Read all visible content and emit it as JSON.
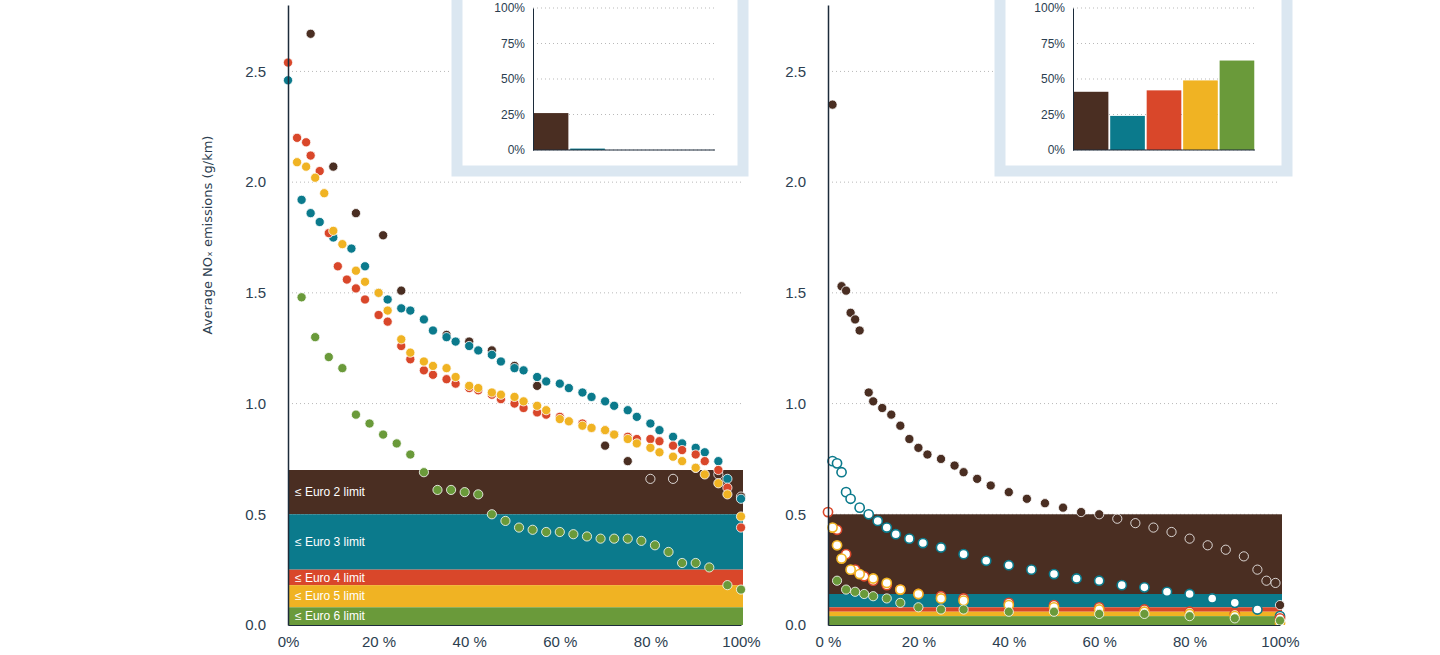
{
  "chart_data": [
    {
      "type": "scatter",
      "ylabel": "Average NOₓ emissions (g/km)",
      "xlim": [
        0,
        100
      ],
      "xticks": [
        {
          "value": 0,
          "label": "0%"
        },
        {
          "value": 20,
          "label": "20 %"
        },
        {
          "value": 40,
          "label": "40 %"
        },
        {
          "value": 60,
          "label": "60 %"
        },
        {
          "value": 80,
          "label": "80 %"
        },
        {
          "value": 100,
          "label": "100%"
        }
      ],
      "ylim": [
        0,
        2.8
      ],
      "yticks": [
        {
          "value": 0,
          "label": "0.0"
        },
        0.5,
        {
          "value": 1,
          "label": "1.0"
        },
        1.5,
        {
          "value": 2,
          "label": "2.0"
        },
        2.5
      ],
      "grid": true,
      "limits": [
        {
          "label": "≤ Euro 2 limit",
          "value": 0.7,
          "color": "#4a2e22"
        },
        {
          "label": "≤ Euro 3 limit",
          "value": 0.5,
          "color": "#0b7a8c"
        },
        {
          "label": "≤ Euro 4 limit",
          "value": 0.25,
          "color": "#d9472a"
        },
        {
          "label": "≤ Euro 5 limit",
          "value": 0.18,
          "color": "#f0b323"
        },
        {
          "label": "≤ Euro 6 limit",
          "value": 0.08,
          "color": "#6a9a3a"
        }
      ],
      "series": [
        {
          "color": "#4a2e22",
          "marker": "circle",
          "x": [
            5,
            10,
            15,
            21,
            25,
            35,
            40,
            45,
            50,
            55,
            70,
            75,
            80,
            85,
            90,
            95,
            100
          ],
          "values": [
            2.67,
            2.07,
            1.86,
            1.76,
            1.51,
            1.31,
            1.28,
            1.24,
            1.17,
            1.08,
            0.81,
            0.74,
            0.66,
            0.66,
            0.71,
            0.68,
            0.58
          ]
        },
        {
          "color": "#0b7a8c",
          "marker": "circle",
          "x": [
            0,
            3,
            5,
            7,
            10,
            14,
            17,
            20,
            22,
            25,
            27,
            30,
            32,
            35,
            37,
            40,
            42,
            45,
            47,
            50,
            52,
            55,
            57,
            60,
            62,
            65,
            67,
            70,
            72,
            75,
            77,
            80,
            82,
            85,
            87,
            90,
            92,
            95,
            97,
            100
          ],
          "values": [
            2.46,
            1.92,
            1.86,
            1.82,
            1.75,
            1.7,
            1.62,
            1.5,
            1.47,
            1.43,
            1.42,
            1.38,
            1.33,
            1.3,
            1.28,
            1.26,
            1.24,
            1.22,
            1.19,
            1.16,
            1.15,
            1.12,
            1.1,
            1.09,
            1.07,
            1.05,
            1.03,
            1.01,
            0.99,
            0.97,
            0.94,
            0.91,
            0.88,
            0.85,
            0.82,
            0.8,
            0.78,
            0.74,
            0.66,
            0.57
          ]
        },
        {
          "color": "#d9472a",
          "marker": "circle",
          "x": [
            0,
            2,
            4,
            5,
            7,
            9,
            11,
            13,
            15,
            17,
            20,
            22,
            25,
            27,
            30,
            32,
            35,
            37,
            40,
            42,
            45,
            47,
            50,
            52,
            55,
            57,
            60,
            62,
            65,
            67,
            70,
            72,
            75,
            77,
            80,
            82,
            85,
            87,
            90,
            92,
            95,
            97,
            100
          ],
          "values": [
            2.54,
            2.2,
            2.18,
            2.12,
            2.05,
            1.77,
            1.62,
            1.56,
            1.52,
            1.47,
            1.4,
            1.37,
            1.26,
            1.2,
            1.15,
            1.13,
            1.11,
            1.09,
            1.07,
            1.06,
            1.04,
            1.02,
            1.0,
            0.98,
            0.96,
            0.95,
            0.94,
            0.92,
            0.91,
            0.89,
            0.88,
            0.86,
            0.85,
            0.84,
            0.84,
            0.83,
            0.81,
            0.79,
            0.77,
            0.74,
            0.7,
            0.62,
            0.44
          ]
        },
        {
          "color": "#f0b323",
          "marker": "circle",
          "x": [
            2,
            4,
            6,
            8,
            10,
            12,
            15,
            17,
            20,
            22,
            25,
            27,
            30,
            32,
            35,
            37,
            40,
            42,
            45,
            47,
            50,
            52,
            55,
            57,
            60,
            62,
            65,
            67,
            70,
            72,
            75,
            77,
            80,
            82,
            85,
            87,
            90,
            92,
            95,
            97,
            100
          ],
          "values": [
            2.09,
            2.07,
            2.02,
            1.95,
            1.78,
            1.72,
            1.6,
            1.55,
            1.5,
            1.42,
            1.29,
            1.23,
            1.19,
            1.17,
            1.16,
            1.12,
            1.08,
            1.07,
            1.05,
            1.04,
            1.03,
            1.01,
            0.99,
            0.97,
            0.93,
            0.92,
            0.9,
            0.89,
            0.88,
            0.86,
            0.84,
            0.82,
            0.8,
            0.78,
            0.76,
            0.74,
            0.71,
            0.68,
            0.64,
            0.59,
            0.49
          ]
        },
        {
          "color": "#6a9a3a",
          "marker": "circle",
          "x": [
            3,
            6,
            9,
            12,
            15,
            18,
            21,
            24,
            27,
            30,
            33,
            36,
            39,
            42,
            45,
            48,
            51,
            54,
            57,
            60,
            63,
            66,
            69,
            72,
            75,
            78,
            81,
            84,
            87,
            90,
            93,
            97,
            100
          ],
          "values": [
            1.48,
            1.3,
            1.21,
            1.16,
            0.95,
            0.91,
            0.86,
            0.82,
            0.77,
            0.69,
            0.61,
            0.61,
            0.6,
            0.59,
            0.5,
            0.47,
            0.44,
            0.43,
            0.42,
            0.42,
            0.41,
            0.4,
            0.39,
            0.39,
            0.39,
            0.38,
            0.36,
            0.33,
            0.28,
            0.28,
            0.26,
            0.18,
            0.16
          ]
        }
      ],
      "inset": {
        "type": "bar",
        "values": [
          26,
          1,
          0,
          0,
          0
        ],
        "colors": [
          "#4a2e22",
          "#0b7a8c",
          "#d9472a",
          "#f0b323",
          "#6a9a3a"
        ],
        "ylim": [
          0,
          100
        ],
        "yticks": [
          {
            "value": 0,
            "label": "0%"
          },
          {
            "value": 25,
            "label": "25%"
          },
          {
            "value": 50,
            "label": "50%"
          },
          {
            "value": 75,
            "label": "75%"
          },
          {
            "value": 100,
            "label": "100%"
          }
        ],
        "grid": true
      }
    },
    {
      "type": "scatter",
      "xlim": [
        0,
        100
      ],
      "xticks": [
        {
          "value": 0,
          "label": "0 %"
        },
        {
          "value": 20,
          "label": "20 %"
        },
        {
          "value": 40,
          "label": "40 %"
        },
        {
          "value": 60,
          "label": "60 %"
        },
        {
          "value": 80,
          "label": "80 %"
        },
        {
          "value": 100,
          "label": "100%"
        }
      ],
      "ylim": [
        0,
        2.8
      ],
      "yticks": [
        {
          "value": 0,
          "label": "0.0"
        },
        0.5,
        {
          "value": 1,
          "label": "1.0"
        },
        1.5,
        {
          "value": 2,
          "label": "2.0"
        },
        2.5
      ],
      "grid": true,
      "limits": [
        {
          "value": 0.5,
          "color": "#4a2e22"
        },
        {
          "value": 0.14,
          "color": "#0b7a8c"
        },
        {
          "value": 0.08,
          "color": "#d9472a"
        },
        {
          "value": 0.06,
          "color": "#f0b323"
        },
        {
          "value": 0.04,
          "color": "#6a9a3a"
        }
      ],
      "series": [
        {
          "color": "#4a2e22",
          "marker": "circle",
          "x": [
            1,
            3,
            4,
            5,
            6,
            7,
            9,
            10,
            12,
            14,
            16,
            18,
            20,
            22,
            25,
            28,
            30,
            33,
            36,
            40,
            44,
            48,
            52,
            56,
            60,
            64,
            68,
            72,
            76,
            80,
            84,
            88,
            92,
            95,
            97,
            99,
            100
          ],
          "values": [
            2.35,
            1.53,
            1.51,
            1.41,
            1.38,
            1.33,
            1.05,
            1.01,
            0.98,
            0.95,
            0.9,
            0.84,
            0.8,
            0.77,
            0.75,
            0.72,
            0.69,
            0.66,
            0.63,
            0.6,
            0.57,
            0.55,
            0.53,
            0.51,
            0.5,
            0.48,
            0.46,
            0.44,
            0.42,
            0.39,
            0.36,
            0.34,
            0.31,
            0.25,
            0.2,
            0.19,
            0.09
          ]
        },
        {
          "color": "#0b7a8c",
          "marker": "open",
          "x": [
            1,
            2,
            3,
            4,
            5,
            7,
            9,
            11,
            13,
            15,
            18,
            21,
            25,
            30,
            35,
            40,
            45,
            50,
            55,
            60,
            65,
            70,
            75,
            80,
            85,
            90,
            95,
            100
          ],
          "values": [
            0.74,
            0.73,
            0.69,
            0.6,
            0.57,
            0.53,
            0.5,
            0.47,
            0.44,
            0.41,
            0.39,
            0.37,
            0.35,
            0.32,
            0.29,
            0.27,
            0.25,
            0.23,
            0.21,
            0.2,
            0.18,
            0.17,
            0.15,
            0.14,
            0.12,
            0.1,
            0.07,
            0.04
          ]
        },
        {
          "color": "#d9472a",
          "marker": "open",
          "x": [
            0,
            2,
            4,
            6,
            8,
            10,
            13,
            16,
            20,
            25,
            30,
            40,
            50,
            60,
            70,
            80,
            90,
            100
          ],
          "values": [
            0.51,
            0.43,
            0.32,
            0.25,
            0.22,
            0.2,
            0.18,
            0.16,
            0.14,
            0.13,
            0.12,
            0.1,
            0.09,
            0.08,
            0.07,
            0.06,
            0.05,
            0.03
          ]
        },
        {
          "color": "#f0b323",
          "marker": "open",
          "x": [
            1,
            2,
            3,
            5,
            7,
            10,
            13,
            16,
            20,
            25,
            30,
            40,
            50,
            60,
            70,
            80,
            90,
            100
          ],
          "values": [
            0.44,
            0.36,
            0.3,
            0.25,
            0.23,
            0.21,
            0.19,
            0.16,
            0.14,
            0.12,
            0.11,
            0.09,
            0.08,
            0.07,
            0.06,
            0.05,
            0.04,
            0.01
          ]
        },
        {
          "color": "#6a9a3a",
          "marker": "circle",
          "x": [
            2,
            4,
            6,
            8,
            10,
            13,
            16,
            20,
            25,
            30,
            40,
            50,
            60,
            70,
            80,
            90,
            100
          ],
          "values": [
            0.2,
            0.16,
            0.15,
            0.14,
            0.13,
            0.12,
            0.1,
            0.08,
            0.07,
            0.07,
            0.06,
            0.06,
            0.05,
            0.05,
            0.04,
            0.03,
            0.02
          ]
        }
      ],
      "inset": {
        "type": "bar",
        "values": [
          41,
          24,
          42,
          49,
          63
        ],
        "colors": [
          "#4a2e22",
          "#0b7a8c",
          "#d9472a",
          "#f0b323",
          "#6a9a3a"
        ],
        "ylim": [
          0,
          100
        ],
        "yticks": [
          {
            "value": 0,
            "label": "0%"
          },
          {
            "value": 25,
            "label": "25%"
          },
          {
            "value": 50,
            "label": "50%"
          },
          {
            "value": 75,
            "label": "75%"
          },
          {
            "value": 100,
            "label": "100%"
          }
        ],
        "grid": true
      }
    }
  ]
}
